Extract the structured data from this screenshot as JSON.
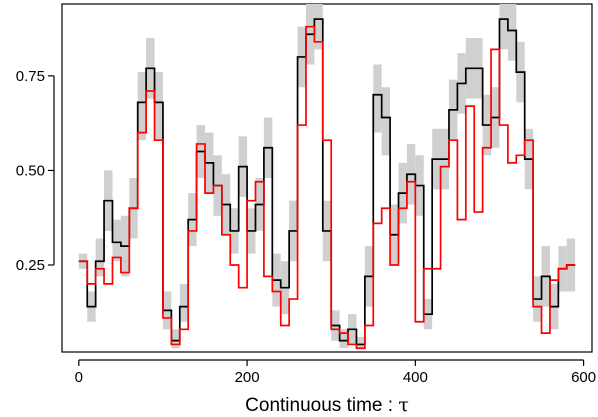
{
  "chart_data": {
    "type": "line",
    "title": "",
    "xlabel": "Continuous time : ",
    "xlabel_symbol": "τ",
    "ylabel": "",
    "xlim": [
      -20,
      610
    ],
    "ylim": [
      0.02,
      0.94
    ],
    "x_ticks": [
      {
        "value": 0,
        "label": "0"
      },
      {
        "value": 200,
        "label": "200"
      },
      {
        "value": 400,
        "label": "400"
      },
      {
        "value": 600,
        "label": "600"
      }
    ],
    "y_ticks": [
      {
        "value": 0.25,
        "label": "0.25"
      },
      {
        "value": 0.5,
        "label": "0.50"
      },
      {
        "value": 0.75,
        "label": "0.75"
      }
    ],
    "grid": false,
    "step_width": 10,
    "x_start": 0,
    "band_color": "#d0d0d0",
    "series": [
      {
        "role": "estimate",
        "color": "#000000",
        "values": [
          0.26,
          0.14,
          0.26,
          0.42,
          0.31,
          0.3,
          0.4,
          0.68,
          0.77,
          0.68,
          0.13,
          0.05,
          0.14,
          0.37,
          0.55,
          0.52,
          0.46,
          0.41,
          0.34,
          0.51,
          0.34,
          0.41,
          0.56,
          0.21,
          0.19,
          0.34,
          0.8,
          0.86,
          0.9,
          0.34,
          0.09,
          0.05,
          0.08,
          0.04,
          0.22,
          0.7,
          0.64,
          0.33,
          0.44,
          0.49,
          0.46,
          0.12,
          0.53,
          0.53,
          0.66,
          0.73,
          0.77,
          0.77,
          0.62,
          0.64,
          0.9,
          0.87,
          0.76,
          0.53,
          0.16,
          0.22,
          0.14,
          0.24,
          0.25
        ]
      },
      {
        "role": "truth",
        "color": "#ff0000",
        "values": [
          0.26,
          0.2,
          0.24,
          0.2,
          0.27,
          0.23,
          0.4,
          0.6,
          0.71,
          0.58,
          0.11,
          0.04,
          0.08,
          0.34,
          0.57,
          0.44,
          0.46,
          0.33,
          0.25,
          0.19,
          0.42,
          0.47,
          0.22,
          0.18,
          0.09,
          0.16,
          0.62,
          0.88,
          0.84,
          0.58,
          0.08,
          0.07,
          0.04,
          0.03,
          0.09,
          0.36,
          0.4,
          0.25,
          0.4,
          0.47,
          0.1,
          0.24,
          0.24,
          0.51,
          0.58,
          0.37,
          0.67,
          0.39,
          0.56,
          0.82,
          0.62,
          0.52,
          0.54,
          0.58,
          0.14,
          0.07,
          0.21,
          0.24,
          0.25
        ]
      }
    ],
    "band": {
      "role": "interval",
      "lower": [
        0.24,
        0.1,
        0.22,
        0.34,
        0.26,
        0.22,
        0.32,
        0.58,
        0.69,
        0.58,
        0.08,
        0.03,
        0.1,
        0.3,
        0.48,
        0.44,
        0.38,
        0.33,
        0.28,
        0.43,
        0.28,
        0.34,
        0.48,
        0.14,
        0.12,
        0.26,
        0.72,
        0.78,
        0.82,
        0.26,
        0.05,
        0.03,
        0.04,
        0.03,
        0.14,
        0.6,
        0.54,
        0.25,
        0.36,
        0.41,
        0.38,
        0.08,
        0.45,
        0.45,
        0.58,
        0.65,
        0.69,
        0.69,
        0.54,
        0.56,
        0.82,
        0.79,
        0.68,
        0.45,
        0.1,
        0.14,
        0.08,
        0.18,
        0.18
      ],
      "upper": [
        0.28,
        0.18,
        0.32,
        0.5,
        0.37,
        0.38,
        0.48,
        0.76,
        0.85,
        0.76,
        0.18,
        0.08,
        0.2,
        0.44,
        0.62,
        0.6,
        0.54,
        0.49,
        0.4,
        0.59,
        0.4,
        0.48,
        0.64,
        0.28,
        0.26,
        0.42,
        0.88,
        0.94,
        0.94,
        0.42,
        0.13,
        0.08,
        0.12,
        0.06,
        0.3,
        0.78,
        0.72,
        0.41,
        0.52,
        0.57,
        0.54,
        0.16,
        0.61,
        0.61,
        0.74,
        0.81,
        0.85,
        0.85,
        0.7,
        0.72,
        0.94,
        0.94,
        0.84,
        0.61,
        0.22,
        0.3,
        0.2,
        0.3,
        0.32
      ]
    }
  }
}
